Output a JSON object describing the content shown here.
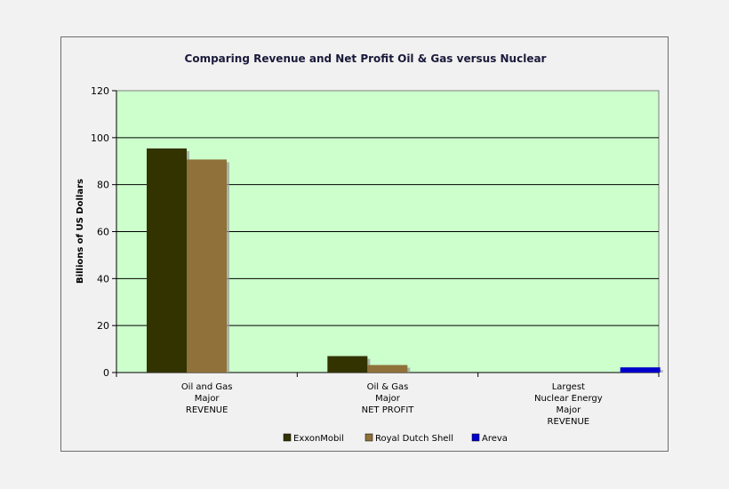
{
  "chart_data": {
    "type": "bar",
    "title": "Comparing Revenue and Net Profit Oil & Gas versus Nuclear",
    "ylabel": "Billions of US Dollars",
    "xlabel": "",
    "ylim": [
      0,
      120
    ],
    "yticks": [
      0,
      20,
      40,
      60,
      80,
      100,
      120
    ],
    "grid": true,
    "legend_position": "bottom",
    "plot_background": "#ccffcc",
    "categories": [
      [
        "Oil and Gas",
        "Major",
        "REVENUE"
      ],
      [
        "Oil & Gas",
        "Major",
        "NET PROFIT"
      ],
      [
        "Largest",
        "Nuclear Energy",
        "Major",
        "REVENUE"
      ]
    ],
    "series": [
      {
        "name": "ExxonMobil",
        "color": "#333300",
        "values": [
          95.4,
          7,
          null
        ]
      },
      {
        "name": "Royal Dutch Shell",
        "color": "#8f7139",
        "values": [
          90.7,
          3.2,
          null
        ]
      },
      {
        "name": "Areva",
        "color": "#0000cc",
        "values": [
          null,
          null,
          2.2
        ]
      }
    ]
  }
}
